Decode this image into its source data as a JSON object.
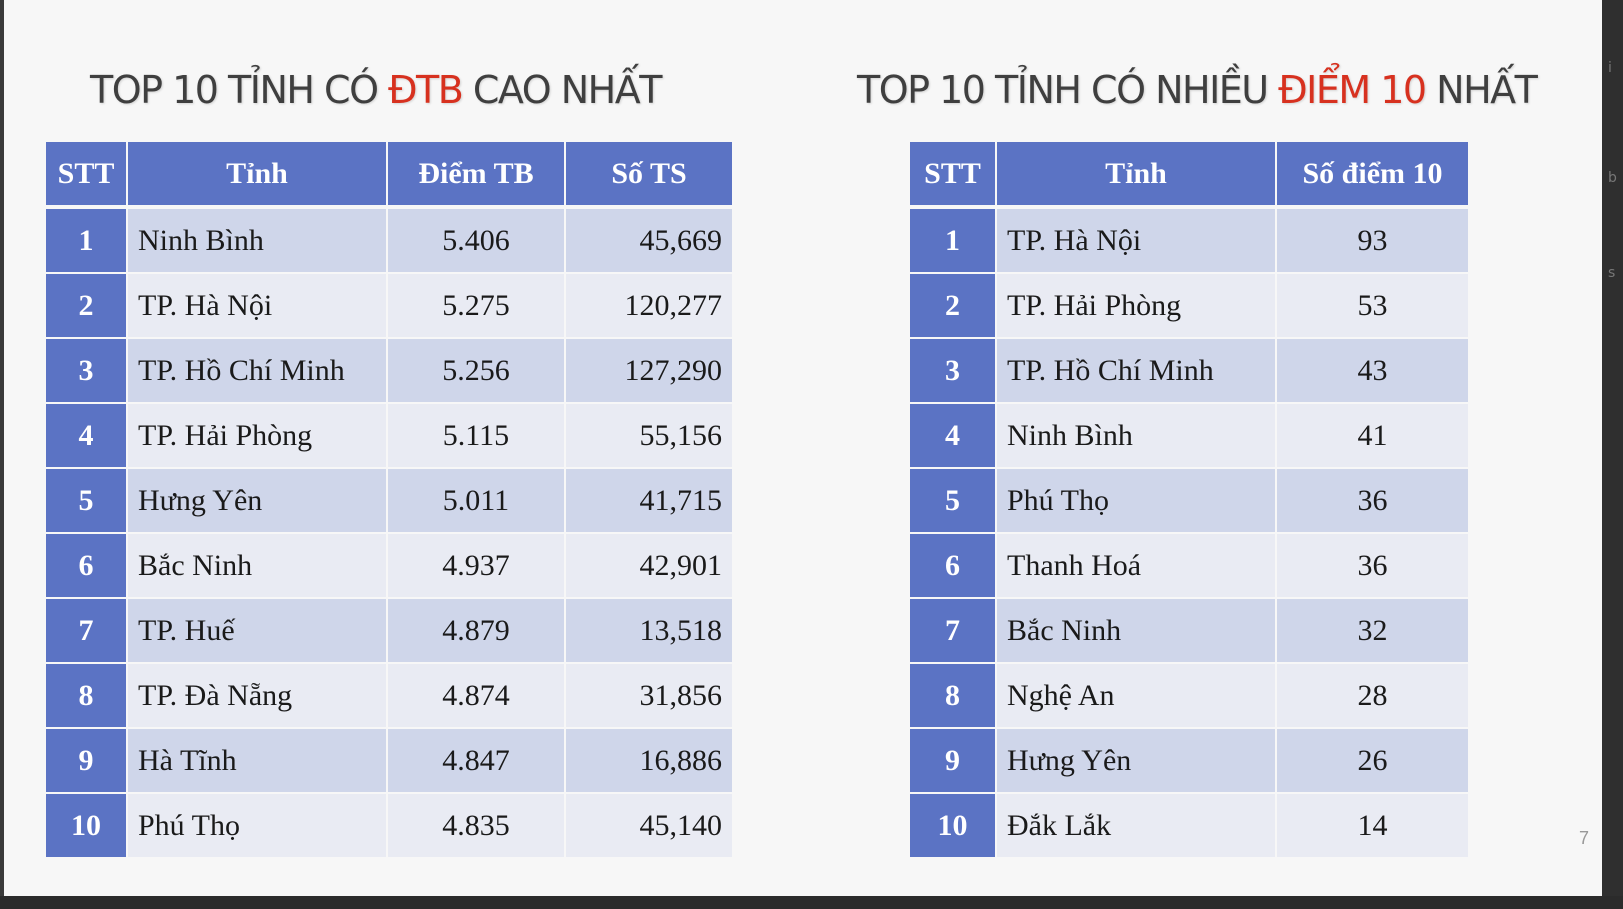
{
  "left": {
    "title_parts": [
      "TOP 10 TỈNH CÓ ",
      "ĐTB",
      " CAO NHẤT"
    ],
    "headers": [
      "STT",
      "Tỉnh",
      "Điểm TB",
      "Số TS"
    ],
    "rows": [
      [
        "1",
        "Ninh Bình",
        "5.406",
        "45,669"
      ],
      [
        "2",
        "TP. Hà Nội",
        "5.275",
        "120,277"
      ],
      [
        "3",
        "TP. Hồ Chí Minh",
        "5.256",
        "127,290"
      ],
      [
        "4",
        "TP. Hải Phòng",
        "5.115",
        "55,156"
      ],
      [
        "5",
        "Hưng Yên",
        "5.011",
        "41,715"
      ],
      [
        "6",
        "Bắc Ninh",
        "4.937",
        "42,901"
      ],
      [
        "7",
        "TP. Huế",
        "4.879",
        "13,518"
      ],
      [
        "8",
        "TP. Đà Nẵng",
        "4.874",
        "31,856"
      ],
      [
        "9",
        "Hà Tĩnh",
        "4.847",
        "16,886"
      ],
      [
        "10",
        "Phú Thọ",
        "4.835",
        "45,140"
      ]
    ]
  },
  "right": {
    "title_parts": [
      "TOP 10 TỈNH CÓ NHIỀU ",
      "ĐIỂM 10",
      " NHẤT"
    ],
    "headers": [
      "STT",
      "Tỉnh",
      "Số điểm 10"
    ],
    "rows": [
      [
        "1",
        "TP. Hà Nội",
        "93"
      ],
      [
        "2",
        "TP. Hải Phòng",
        "53"
      ],
      [
        "3",
        "TP. Hồ Chí Minh",
        "43"
      ],
      [
        "4",
        "Ninh Bình",
        "41"
      ],
      [
        "5",
        "Phú Thọ",
        "36"
      ],
      [
        "6",
        "Thanh Hoá",
        "36"
      ],
      [
        "7",
        "Bắc Ninh",
        "32"
      ],
      [
        "8",
        "Nghệ An",
        "28"
      ],
      [
        "9",
        "Hưng Yên",
        "26"
      ],
      [
        "10",
        "Đắk Lắk",
        "14"
      ]
    ]
  },
  "page_number": "7",
  "edge_glyphs": [
    "i",
    "b",
    "s"
  ],
  "colors": {
    "header_bg": "#5b73c4",
    "row_odd": "#cfd6ea",
    "row_even": "#e9ebf3",
    "highlight": "#d7311f",
    "title_text": "#3f3f3f"
  }
}
